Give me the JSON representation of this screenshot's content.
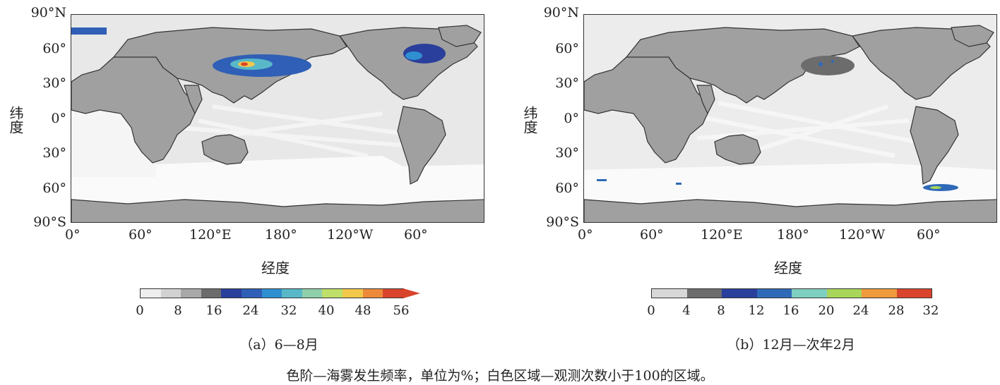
{
  "panels": [
    {
      "id": "a",
      "lat_labels": [
        "90°N",
        "60°",
        "30°",
        "0°",
        "30°",
        "60°",
        "90°S"
      ],
      "lon_labels": [
        "0°",
        "60°",
        "120°E",
        "180°",
        "120°W",
        "60°"
      ],
      "ylabel": "纬度",
      "xlabel": "经度",
      "colorbar_ticks": [
        "0",
        "8",
        "16",
        "24",
        "32",
        "40",
        "48",
        "56"
      ],
      "colorbar_colors": [
        "#eeeeee",
        "#d2d2d2",
        "#a8a8a8",
        "#6c6c6c",
        "#2a3f9c",
        "#2f5fb6",
        "#2f8fd0",
        "#58b8c8",
        "#8fcfa9",
        "#bedf6a",
        "#f2c84a",
        "#ec8a3a",
        "#d9442c"
      ],
      "caption": "（a）6—8月"
    },
    {
      "id": "b",
      "lat_labels": [
        "90°N",
        "60°",
        "30°",
        "0°",
        "30°",
        "60°",
        "90°S"
      ],
      "lon_labels": [
        "0°",
        "60°",
        "120°E",
        "180°",
        "120°W",
        "60°"
      ],
      "ylabel": "纬度",
      "xlabel": "经度",
      "colorbar_ticks": [
        "0",
        "4",
        "8",
        "12",
        "16",
        "20",
        "24",
        "28",
        "32"
      ],
      "colorbar_colors": [
        "#d8d8d8",
        "#6c6c6c",
        "#2a3f9c",
        "#2f6ab8",
        "#7fcfc0",
        "#a9d65a",
        "#ef9a3c",
        "#d9442c"
      ],
      "caption": "（b）12月—次年2月"
    }
  ],
  "note": "色阶—海雾发生频率，单位为%；白色区域—观测次数小于100的区域。",
  "colors": {
    "land": "#a0a0a0",
    "ocean": "#e6e6e6",
    "no_data": "#ffffff",
    "frame": "#333333"
  }
}
